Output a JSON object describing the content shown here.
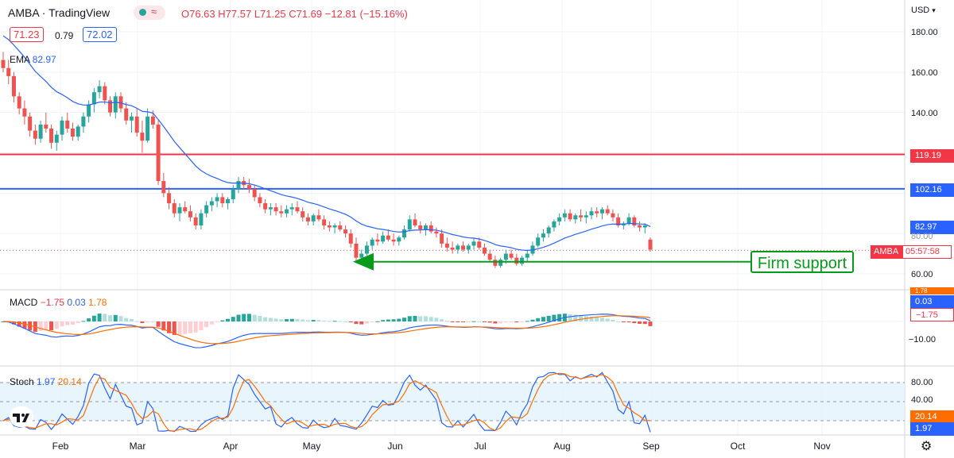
{
  "header": {
    "symbol": "AMBA",
    "separator": "·",
    "source": "TradingView",
    "open": "O76.63",
    "high": "H77.57",
    "low": "L71.25",
    "close": "C71.69",
    "change": "−12.81 (−15.16%)",
    "bid": "71.23",
    "spread": "0.79",
    "ask": "72.02",
    "currency": "USD"
  },
  "ema_label": "EMA",
  "ema_value": "82.97",
  "macd": {
    "label": "MACD",
    "hist": "−1.75",
    "macd": "0.03",
    "signal": "1.78"
  },
  "stoch": {
    "label": "Stoch",
    "k": "1.97",
    "d": "20.14"
  },
  "price_badges": {
    "resistance": "119.19",
    "support": "102.16",
    "ema": "82.97",
    "symbol": "AMBA",
    "countdown": "05:57:58"
  },
  "macd_badges": {
    "signal": "1.78",
    "macd": "0.03",
    "hist": "−1.75"
  },
  "stoch_badges": {
    "d": "20.14",
    "k": "1.97"
  },
  "annotation": "Firm support",
  "colors": {
    "up": "#26a69a",
    "down": "#ef5350",
    "ema": "#2962ff",
    "resistance": "#f23645",
    "support": "#2962ff",
    "arrow": "#089a1b",
    "macd_line": "#2962ff",
    "signal_line": "#ff6d00",
    "stoch_band": "#e3f2fd"
  },
  "chart_data": {
    "type": "candlestick",
    "x_ticks": [
      "Feb",
      "Mar",
      "Apr",
      "May",
      "Jun",
      "Jul",
      "Aug",
      "Sep",
      "Oct",
      "Nov"
    ],
    "price_ticks": [
      "180.00",
      "160.00",
      "140.00",
      "120.00",
      "100.00",
      "80.00",
      "60.00"
    ],
    "price_ylim": [
      56,
      192
    ],
    "resistance_level": 119.19,
    "support_level": 102.16,
    "last_close": 71.69,
    "firm_support": 66,
    "candles_ohlc": [
      [
        166,
        170,
        160,
        162
      ],
      [
        162,
        166,
        154,
        158
      ],
      [
        158,
        160,
        145,
        148
      ],
      [
        148,
        150,
        139,
        142
      ],
      [
        142,
        146,
        134,
        138
      ],
      [
        138,
        140,
        128,
        131
      ],
      [
        131,
        134,
        124,
        127
      ],
      [
        127,
        136,
        125,
        134
      ],
      [
        134,
        140,
        130,
        132
      ],
      [
        132,
        134,
        122,
        125
      ],
      [
        125,
        131,
        121,
        129
      ],
      [
        129,
        138,
        126,
        136
      ],
      [
        136,
        140,
        130,
        132
      ],
      [
        132,
        135,
        126,
        128
      ],
      [
        128,
        134,
        126,
        133
      ],
      [
        133,
        140,
        130,
        138
      ],
      [
        138,
        146,
        135,
        144
      ],
      [
        144,
        152,
        140,
        150
      ],
      [
        150,
        156,
        147,
        153
      ],
      [
        153,
        155,
        144,
        146
      ],
      [
        146,
        148,
        138,
        140
      ],
      [
        140,
        150,
        137,
        148
      ],
      [
        148,
        150,
        140,
        142
      ],
      [
        142,
        145,
        134,
        136
      ],
      [
        136,
        140,
        130,
        138
      ],
      [
        138,
        142,
        128,
        130
      ],
      [
        130,
        136,
        120,
        126
      ],
      [
        126,
        142,
        125,
        138
      ],
      [
        138,
        141,
        132,
        134
      ],
      [
        134,
        136,
        104,
        106
      ],
      [
        106,
        110,
        98,
        100
      ],
      [
        100,
        103,
        92,
        95
      ],
      [
        95,
        97,
        88,
        90
      ],
      [
        90,
        95,
        86,
        93
      ],
      [
        93,
        96,
        90,
        91
      ],
      [
        91,
        94,
        86,
        88
      ],
      [
        88,
        90,
        82,
        84
      ],
      [
        84,
        92,
        82,
        90
      ],
      [
        90,
        96,
        88,
        94
      ],
      [
        94,
        98,
        91,
        96
      ],
      [
        96,
        100,
        93,
        98
      ],
      [
        98,
        100,
        93,
        95
      ],
      [
        95,
        98,
        92,
        97
      ],
      [
        97,
        104,
        95,
        102
      ],
      [
        102,
        108,
        100,
        106
      ],
      [
        106,
        108,
        102,
        104
      ],
      [
        104,
        107,
        100,
        102
      ],
      [
        102,
        104,
        96,
        98
      ],
      [
        98,
        100,
        93,
        95
      ],
      [
        95,
        97,
        90,
        92
      ],
      [
        92,
        95,
        89,
        93
      ],
      [
        93,
        95,
        89,
        91
      ],
      [
        91,
        94,
        88,
        90
      ],
      [
        90,
        94,
        88,
        92
      ],
      [
        92,
        95,
        89,
        93
      ],
      [
        93,
        96,
        90,
        91
      ],
      [
        91,
        93,
        86,
        88
      ],
      [
        88,
        90,
        84,
        86
      ],
      [
        86,
        90,
        84,
        89
      ],
      [
        89,
        92,
        86,
        87
      ],
      [
        87,
        89,
        82,
        84
      ],
      [
        84,
        86,
        81,
        83
      ],
      [
        83,
        85,
        80,
        84
      ],
      [
        84,
        86,
        81,
        82
      ],
      [
        82,
        84,
        78,
        80
      ],
      [
        80,
        82,
        73,
        75
      ],
      [
        75,
        78,
        66,
        68
      ],
      [
        68,
        72,
        65,
        70
      ],
      [
        70,
        76,
        69,
        74
      ],
      [
        74,
        78,
        72,
        77
      ],
      [
        77,
        80,
        74,
        76
      ],
      [
        76,
        81,
        75,
        79
      ],
      [
        79,
        82,
        76,
        77
      ],
      [
        77,
        80,
        74,
        76
      ],
      [
        76,
        79,
        74,
        78
      ],
      [
        78,
        84,
        77,
        82
      ],
      [
        82,
        89,
        81,
        87
      ],
      [
        87,
        90,
        83,
        84
      ],
      [
        84,
        86,
        80,
        82
      ],
      [
        82,
        85,
        79,
        84
      ],
      [
        84,
        86,
        80,
        81
      ],
      [
        81,
        83,
        78,
        80
      ],
      [
        80,
        82,
        73,
        75
      ],
      [
        75,
        78,
        71,
        73
      ],
      [
        73,
        76,
        70,
        72
      ],
      [
        72,
        75,
        70,
        74
      ],
      [
        74,
        76,
        71,
        72
      ],
      [
        72,
        75,
        70,
        74
      ],
      [
        74,
        78,
        72,
        76
      ],
      [
        76,
        78,
        72,
        73
      ],
      [
        73,
        75,
        69,
        70
      ],
      [
        70,
        72,
        66,
        67
      ],
      [
        67,
        69,
        63,
        64
      ],
      [
        64,
        68,
        63,
        67
      ],
      [
        67,
        72,
        65,
        70
      ],
      [
        70,
        72,
        67,
        68
      ],
      [
        68,
        70,
        64,
        65
      ],
      [
        65,
        69,
        64,
        68
      ],
      [
        68,
        72,
        66,
        70
      ],
      [
        70,
        76,
        69,
        74
      ],
      [
        74,
        80,
        73,
        78
      ],
      [
        78,
        82,
        76,
        80
      ],
      [
        80,
        84,
        78,
        83
      ],
      [
        83,
        87,
        81,
        86
      ],
      [
        86,
        90,
        84,
        88
      ],
      [
        88,
        92,
        86,
        90
      ],
      [
        90,
        92,
        86,
        87
      ],
      [
        87,
        90,
        85,
        89
      ],
      [
        89,
        92,
        86,
        88
      ],
      [
        88,
        91,
        85,
        89
      ],
      [
        89,
        93,
        87,
        91
      ],
      [
        91,
        93,
        88,
        90
      ],
      [
        90,
        93,
        87,
        92
      ],
      [
        92,
        94,
        89,
        90
      ],
      [
        90,
        92,
        86,
        88
      ],
      [
        88,
        90,
        83,
        84
      ],
      [
        84,
        86,
        82,
        85
      ],
      [
        85,
        90,
        84,
        88
      ],
      [
        88,
        89,
        83,
        84
      ],
      [
        84,
        86,
        81,
        83
      ],
      [
        83,
        85,
        80,
        84
      ],
      [
        77,
        78,
        71,
        72
      ]
    ],
    "ema_visible_value": 82.97,
    "macd_ticks": [
      "−10.00"
    ],
    "macd_hist_last": -1.75,
    "macd_last": 0.03,
    "signal_last": 1.78,
    "stoch_ticks": [
      "80.00",
      "40.00"
    ],
    "stoch_ylim": [
      0,
      100
    ],
    "stoch_band": [
      20,
      80
    ],
    "stoch_k_last": 1.97,
    "stoch_d_last": 20.14
  }
}
